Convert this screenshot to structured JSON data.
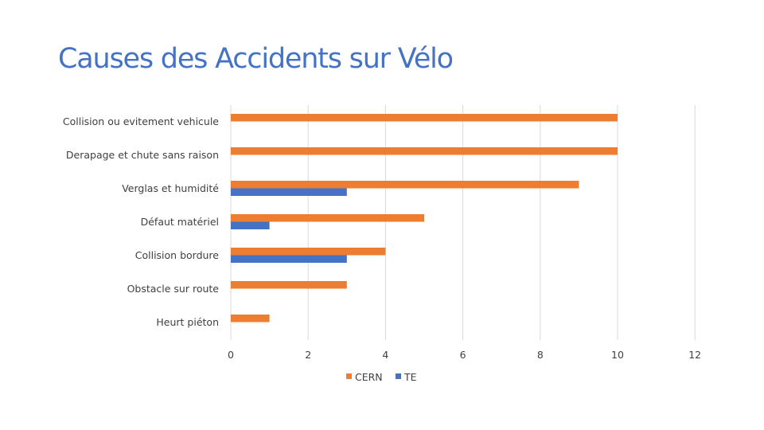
{
  "slide": {
    "title": "Causes des Accidents sur Vélo"
  },
  "chart_data": {
    "type": "bar",
    "orientation": "horizontal",
    "title": "Causes des Accidents sur Vélo",
    "xlabel": "",
    "ylabel": "",
    "categories": [
      "Collision ou evitement vehicule",
      "Derapage et chute sans raison",
      "Verglas et humidité",
      "Défaut matériel",
      "Collision bordure",
      "Obstacle sur route",
      "Heurt piéton"
    ],
    "series": [
      {
        "name": "CERN",
        "color": "#ed7d31",
        "values": [
          10,
          10,
          9,
          5,
          4,
          3,
          1
        ]
      },
      {
        "name": "TE",
        "color": "#4472c4",
        "values": [
          0,
          0,
          3,
          1,
          3,
          0,
          0
        ]
      }
    ],
    "xlim": [
      0,
      12
    ],
    "xticks": [
      0,
      2,
      4,
      6,
      8,
      10,
      12
    ],
    "grid": true,
    "legend": "bottom"
  }
}
